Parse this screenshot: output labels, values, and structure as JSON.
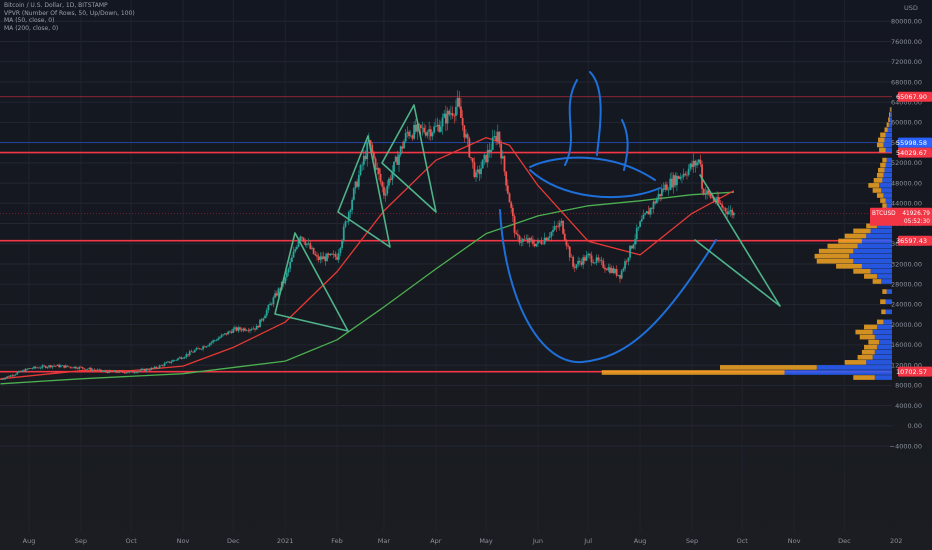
{
  "legend": {
    "line1": "Bitcoin / U.S. Dollar, 1D, BITSTAMP",
    "line2": "VPVR (Number Of Rows, 50, Up/Down, 100)",
    "line3": "MA (50, close, 0)",
    "line4": "MA (200, close, 0)"
  },
  "axis": {
    "currency": "USD",
    "y_ticks": [
      {
        "label": "80000.00",
        "value": 80000
      },
      {
        "label": "76000.00",
        "value": 76000
      },
      {
        "label": "72000.00",
        "value": 72000
      },
      {
        "label": "68000.00",
        "value": 68000
      },
      {
        "label": "64000.00",
        "value": 64000
      },
      {
        "label": "60000.00",
        "value": 60000
      },
      {
        "label": "56000.00",
        "value": 56000
      },
      {
        "label": "52000.00",
        "value": 52000
      },
      {
        "label": "48000.00",
        "value": 48000
      },
      {
        "label": "44000.00",
        "value": 44000
      },
      {
        "label": "40000.00",
        "value": 40000
      },
      {
        "label": "36000.00",
        "value": 36000
      },
      {
        "label": "32000.00",
        "value": 32000
      },
      {
        "label": "28000.00",
        "value": 28000
      },
      {
        "label": "24000.00",
        "value": 24000
      },
      {
        "label": "20000.00",
        "value": 20000
      },
      {
        "label": "16000.00",
        "value": 16000
      },
      {
        "label": "12000.00",
        "value": 12000
      },
      {
        "label": "8000.00",
        "value": 8000
      },
      {
        "label": "4000.00",
        "value": 4000
      },
      {
        "label": "0.00",
        "value": 0
      },
      {
        "label": "−4000.00",
        "value": -4000
      }
    ],
    "x_ticks": [
      {
        "label": "Aug",
        "date": "2020-08-01"
      },
      {
        "label": "Sep",
        "date": "2020-09-01"
      },
      {
        "label": "Oct",
        "date": "2020-10-01"
      },
      {
        "label": "Nov",
        "date": "2020-11-01"
      },
      {
        "label": "Dec",
        "date": "2020-12-01"
      },
      {
        "label": "2021",
        "date": "2021-01-01"
      },
      {
        "label": "Feb",
        "date": "2021-02-01"
      },
      {
        "label": "Mar",
        "date": "2021-03-01"
      },
      {
        "label": "Apr",
        "date": "2021-04-01"
      },
      {
        "label": "May",
        "date": "2021-05-01"
      },
      {
        "label": "Jun",
        "date": "2021-06-01"
      },
      {
        "label": "Jul",
        "date": "2021-07-01"
      },
      {
        "label": "Aug",
        "date": "2021-08-01"
      },
      {
        "label": "Sep",
        "date": "2021-09-01"
      },
      {
        "label": "Oct",
        "date": "2021-10-01"
      },
      {
        "label": "Nov",
        "date": "2021-11-01"
      },
      {
        "label": "Dec",
        "date": "2021-12-01"
      },
      {
        "label": "202",
        "date": "2022-01-01"
      }
    ]
  },
  "price_tags": [
    {
      "label": "65067.90",
      "value": 65067.9,
      "color": "#f23645"
    },
    {
      "label": "55998.58",
      "value": 55998.58,
      "color": "#2962ff"
    },
    {
      "label": "54029.67",
      "value": 54029.67,
      "color": "#f23645"
    },
    {
      "label": "36597.43",
      "value": 36597.43,
      "color": "#f23645"
    },
    {
      "label": "10702.57",
      "value": 10702.57,
      "color": "#f23645"
    }
  ],
  "current_price": {
    "symbol": "BTCUSD",
    "price": "41926.79",
    "countdown": "05:52:30",
    "value": 41926.79,
    "color": "#f23645"
  },
  "colors": {
    "up_candle": "#26a69a",
    "down_candle": "#ef5350",
    "ma50": "#e53935",
    "ma200": "#4caf50",
    "vpvr_up": "#2962ff",
    "vpvr_down": "#f5a623",
    "annotation_blue": "#1e6fd9",
    "annotation_green": "#4fb38a",
    "hline_red": "#f23645",
    "hline_blue": "#2962ff"
  },
  "chart_data": {
    "type": "candlestick",
    "title": "Bitcoin / U.S. Dollar, 1D, BITSTAMP",
    "ylim": [
      -4000,
      82000
    ],
    "xlim": [
      "2020-07-15",
      "2022-01-01"
    ],
    "grid": true,
    "horizontal_lines": [
      65067.9,
      55998.58,
      54029.67,
      36597.43,
      10702.57
    ],
    "monthly_closes": [
      {
        "date": "2020-07-15",
        "close": 9200
      },
      {
        "date": "2020-08-01",
        "close": 11300
      },
      {
        "date": "2020-08-15",
        "close": 11900
      },
      {
        "date": "2020-09-01",
        "close": 11500
      },
      {
        "date": "2020-09-15",
        "close": 10700
      },
      {
        "date": "2020-10-01",
        "close": 10600
      },
      {
        "date": "2020-10-15",
        "close": 11400
      },
      {
        "date": "2020-11-01",
        "close": 13700
      },
      {
        "date": "2020-11-15",
        "close": 16000
      },
      {
        "date": "2020-12-01",
        "close": 19000
      },
      {
        "date": "2020-12-15",
        "close": 19400
      },
      {
        "date": "2021-01-01",
        "close": 29000
      },
      {
        "date": "2021-01-10",
        "close": 38000
      },
      {
        "date": "2021-01-20",
        "close": 33000
      },
      {
        "date": "2021-02-01",
        "close": 33500
      },
      {
        "date": "2021-02-10",
        "close": 45000
      },
      {
        "date": "2021-02-20",
        "close": 56000
      },
      {
        "date": "2021-03-01",
        "close": 46000
      },
      {
        "date": "2021-03-15",
        "close": 58000
      },
      {
        "date": "2021-04-01",
        "close": 58800
      },
      {
        "date": "2021-04-14",
        "close": 63500
      },
      {
        "date": "2021-04-25",
        "close": 49000
      },
      {
        "date": "2021-05-08",
        "close": 58000
      },
      {
        "date": "2021-05-19",
        "close": 37000
      },
      {
        "date": "2021-06-01",
        "close": 36000
      },
      {
        "date": "2021-06-15",
        "close": 40000
      },
      {
        "date": "2021-06-22",
        "close": 31500
      },
      {
        "date": "2021-07-01",
        "close": 33500
      },
      {
        "date": "2021-07-20",
        "close": 29800
      },
      {
        "date": "2021-08-01",
        "close": 39800
      },
      {
        "date": "2021-08-15",
        "close": 47000
      },
      {
        "date": "2021-09-06",
        "close": 52600
      },
      {
        "date": "2021-09-07",
        "close": 46800
      },
      {
        "date": "2021-09-20",
        "close": 43000
      },
      {
        "date": "2021-09-26",
        "close": 41926.79
      }
    ],
    "ma50": [
      {
        "date": "2020-07-15",
        "value": 9300
      },
      {
        "date": "2020-09-01",
        "value": 10900
      },
      {
        "date": "2020-10-01",
        "value": 10900
      },
      {
        "date": "2020-11-01",
        "value": 11800
      },
      {
        "date": "2020-12-01",
        "value": 15500
      },
      {
        "date": "2021-01-01",
        "value": 20500
      },
      {
        "date": "2021-02-01",
        "value": 30500
      },
      {
        "date": "2021-03-01",
        "value": 42500
      },
      {
        "date": "2021-04-01",
        "value": 52500
      },
      {
        "date": "2021-05-01",
        "value": 57000
      },
      {
        "date": "2021-05-15",
        "value": 55500
      },
      {
        "date": "2021-06-01",
        "value": 47500
      },
      {
        "date": "2021-07-01",
        "value": 36500
      },
      {
        "date": "2021-08-01",
        "value": 33800
      },
      {
        "date": "2021-09-01",
        "value": 42000
      },
      {
        "date": "2021-09-26",
        "value": 46500
      }
    ],
    "ma200": [
      {
        "date": "2020-07-15",
        "value": 8300
      },
      {
        "date": "2020-09-01",
        "value": 9300
      },
      {
        "date": "2020-11-01",
        "value": 10300
      },
      {
        "date": "2021-01-01",
        "value": 12800
      },
      {
        "date": "2021-02-01",
        "value": 17000
      },
      {
        "date": "2021-03-01",
        "value": 23500
      },
      {
        "date": "2021-04-01",
        "value": 31000
      },
      {
        "date": "2021-05-01",
        "value": 38000
      },
      {
        "date": "2021-06-01",
        "value": 41500
      },
      {
        "date": "2021-07-01",
        "value": 43500
      },
      {
        "date": "2021-08-01",
        "value": 44500
      },
      {
        "date": "2021-09-01",
        "value": 45700
      },
      {
        "date": "2021-09-26",
        "value": 46200
      }
    ],
    "vpvr": [
      {
        "price": 9500,
        "up": 0.08,
        "down": 0.1
      },
      {
        "price": 10500,
        "up": 0.5,
        "down": 0.85
      },
      {
        "price": 11500,
        "up": 0.35,
        "down": 0.45
      },
      {
        "price": 12500,
        "up": 0.12,
        "down": 0.1
      },
      {
        "price": 13500,
        "up": 0.09,
        "down": 0.07
      },
      {
        "price": 14500,
        "up": 0.08,
        "down": 0.06
      },
      {
        "price": 15500,
        "up": 0.07,
        "down": 0.06
      },
      {
        "price": 16500,
        "up": 0.06,
        "down": 0.05
      },
      {
        "price": 17500,
        "up": 0.08,
        "down": 0.07
      },
      {
        "price": 18500,
        "up": 0.09,
        "down": 0.08
      },
      {
        "price": 19500,
        "up": 0.07,
        "down": 0.06
      },
      {
        "price": 20500,
        "up": 0.04,
        "down": 0.03
      },
      {
        "price": 22500,
        "up": 0.03,
        "down": 0.02
      },
      {
        "price": 24500,
        "up": 0.03,
        "down": 0.025
      },
      {
        "price": 26500,
        "up": 0.025,
        "down": 0.02
      },
      {
        "price": 28500,
        "up": 0.05,
        "down": 0.04
      },
      {
        "price": 29500,
        "up": 0.07,
        "down": 0.06
      },
      {
        "price": 30500,
        "up": 0.1,
        "down": 0.08
      },
      {
        "price": 31500,
        "up": 0.14,
        "down": 0.12
      },
      {
        "price": 32500,
        "up": 0.18,
        "down": 0.17
      },
      {
        "price": 33500,
        "up": 0.2,
        "down": 0.16
      },
      {
        "price": 34500,
        "up": 0.18,
        "down": 0.16
      },
      {
        "price": 35500,
        "up": 0.16,
        "down": 0.14
      },
      {
        "price": 36500,
        "up": 0.14,
        "down": 0.11
      },
      {
        "price": 37500,
        "up": 0.12,
        "down": 0.1
      },
      {
        "price": 38500,
        "up": 0.1,
        "down": 0.08
      },
      {
        "price": 39500,
        "up": 0.07,
        "down": 0.05
      },
      {
        "price": 40500,
        "up": 0.04,
        "down": 0.03
      },
      {
        "price": 43500,
        "up": 0.025,
        "down": 0.02
      },
      {
        "price": 44500,
        "up": 0.03,
        "down": 0.025
      },
      {
        "price": 45500,
        "up": 0.04,
        "down": 0.03
      },
      {
        "price": 46500,
        "up": 0.05,
        "down": 0.04
      },
      {
        "price": 47500,
        "up": 0.06,
        "down": 0.05
      },
      {
        "price": 48500,
        "up": 0.045,
        "down": 0.04
      },
      {
        "price": 49500,
        "up": 0.04,
        "down": 0.03
      },
      {
        "price": 50500,
        "up": 0.035,
        "down": 0.03
      },
      {
        "price": 51500,
        "up": 0.03,
        "down": 0.025
      },
      {
        "price": 52500,
        "up": 0.025,
        "down": 0.02
      },
      {
        "price": 54500,
        "up": 0.03,
        "down": 0.03
      },
      {
        "price": 55500,
        "up": 0.04,
        "down": 0.03
      },
      {
        "price": 56500,
        "up": 0.035,
        "down": 0.03
      },
      {
        "price": 57500,
        "up": 0.03,
        "down": 0.025
      },
      {
        "price": 58500,
        "up": 0.02,
        "down": 0.015
      },
      {
        "price": 59500,
        "up": 0.015,
        "down": 0.01
      },
      {
        "price": 60500,
        "up": 0.01,
        "down": 0.008
      },
      {
        "price": 61500,
        "up": 0.008,
        "down": 0.006
      },
      {
        "price": 62500,
        "up": 0.006,
        "down": 0.004
      }
    ]
  }
}
